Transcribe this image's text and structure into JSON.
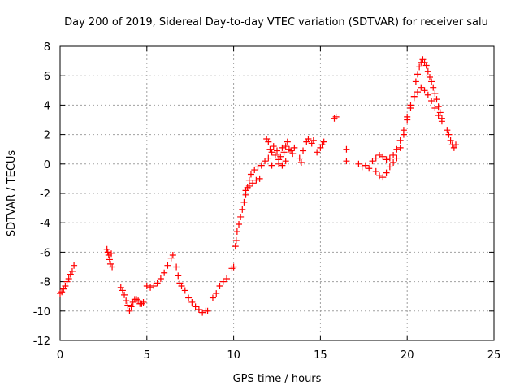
{
  "chart_data": {
    "type": "scatter",
    "title": "Day 200 of 2019, Sidereal Day-to-day VTEC variation (SDTVAR) for receiver salu",
    "xlabel": "GPS time / hours",
    "ylabel": "SDTVAR / TECUs",
    "xlim": [
      0,
      25
    ],
    "ylim": [
      -12,
      8
    ],
    "xticks": [
      "0",
      "5",
      "10",
      "15",
      "20",
      "25"
    ],
    "yticks": [
      "-12",
      "-10",
      "-8",
      "-6",
      "-4",
      "-2",
      "0",
      "2",
      "4",
      "6",
      "8"
    ],
    "grid": true,
    "marker": "+",
    "color": "#ff0000",
    "series": [
      {
        "name": "SDTVAR",
        "points": [
          [
            0.0,
            -8.8
          ],
          [
            0.1,
            -8.7
          ],
          [
            0.2,
            -8.5
          ],
          [
            0.3,
            -8.3
          ],
          [
            0.4,
            -8.0
          ],
          [
            0.5,
            -7.8
          ],
          [
            0.6,
            -7.5
          ],
          [
            0.7,
            -7.3
          ],
          [
            0.8,
            -6.9
          ],
          [
            2.7,
            -5.8
          ],
          [
            2.75,
            -6.0
          ],
          [
            2.8,
            -6.2
          ],
          [
            2.85,
            -6.5
          ],
          [
            2.9,
            -6.8
          ],
          [
            2.95,
            -6.1
          ],
          [
            3.0,
            -7.0
          ],
          [
            3.5,
            -8.4
          ],
          [
            3.6,
            -8.6
          ],
          [
            3.7,
            -8.9
          ],
          [
            3.8,
            -9.3
          ],
          [
            3.9,
            -9.6
          ],
          [
            4.0,
            -10.0
          ],
          [
            4.1,
            -9.7
          ],
          [
            4.2,
            -9.4
          ],
          [
            4.3,
            -9.2
          ],
          [
            4.4,
            -9.2
          ],
          [
            4.5,
            -9.3
          ],
          [
            4.6,
            -9.5
          ],
          [
            4.7,
            -9.5
          ],
          [
            4.8,
            -9.4
          ],
          [
            5.0,
            -8.3
          ],
          [
            5.2,
            -8.4
          ],
          [
            5.4,
            -8.3
          ],
          [
            5.6,
            -8.1
          ],
          [
            5.8,
            -7.8
          ],
          [
            6.0,
            -7.4
          ],
          [
            6.2,
            -6.9
          ],
          [
            6.4,
            -6.4
          ],
          [
            6.5,
            -6.2
          ],
          [
            6.7,
            -7.0
          ],
          [
            6.8,
            -7.6
          ],
          [
            6.9,
            -8.1
          ],
          [
            7.0,
            -8.3
          ],
          [
            7.2,
            -8.6
          ],
          [
            7.4,
            -9.1
          ],
          [
            7.6,
            -9.4
          ],
          [
            7.8,
            -9.7
          ],
          [
            8.0,
            -9.9
          ],
          [
            8.2,
            -10.1
          ],
          [
            8.4,
            -10.0
          ],
          [
            8.5,
            -10.0
          ],
          [
            8.8,
            -9.1
          ],
          [
            9.0,
            -8.8
          ],
          [
            9.2,
            -8.3
          ],
          [
            9.4,
            -8.0
          ],
          [
            9.6,
            -7.8
          ],
          [
            9.9,
            -7.1
          ],
          [
            10.0,
            -7.0
          ],
          [
            10.1,
            -5.6
          ],
          [
            10.15,
            -5.2
          ],
          [
            10.2,
            -4.6
          ],
          [
            10.3,
            -4.1
          ],
          [
            10.4,
            -3.6
          ],
          [
            10.5,
            -3.1
          ],
          [
            10.6,
            -2.6
          ],
          [
            10.7,
            -2.1
          ],
          [
            10.8,
            -1.6
          ],
          [
            10.9,
            -1.1
          ],
          [
            11.0,
            -0.7
          ],
          [
            11.2,
            -0.4
          ],
          [
            11.4,
            -0.2
          ],
          [
            10.7,
            -1.8
          ],
          [
            10.9,
            -1.5
          ],
          [
            11.1,
            -1.3
          ],
          [
            11.3,
            -1.1
          ],
          [
            11.5,
            -1.0
          ],
          [
            11.6,
            -0.1
          ],
          [
            11.8,
            0.2
          ],
          [
            12.0,
            0.4
          ],
          [
            12.1,
            1.0
          ],
          [
            12.2,
            0.8
          ],
          [
            12.3,
            1.2
          ],
          [
            12.4,
            0.6
          ],
          [
            12.5,
            0.9
          ],
          [
            12.6,
            0.3
          ],
          [
            12.7,
            0.5
          ],
          [
            12.8,
            1.1
          ],
          [
            12.9,
            0.8
          ],
          [
            13.0,
            1.2
          ],
          [
            13.1,
            1.5
          ],
          [
            13.2,
            1.0
          ],
          [
            13.3,
            0.9
          ],
          [
            13.4,
            0.7
          ],
          [
            13.5,
            1.1
          ],
          [
            11.9,
            1.7
          ],
          [
            12.0,
            1.5
          ],
          [
            12.2,
            -0.1
          ],
          [
            12.6,
            0.0
          ],
          [
            12.8,
            -0.1
          ],
          [
            13.0,
            0.2
          ],
          [
            13.8,
            0.4
          ],
          [
            13.9,
            0.1
          ],
          [
            14.0,
            0.9
          ],
          [
            14.2,
            1.5
          ],
          [
            14.3,
            1.7
          ],
          [
            14.5,
            1.4
          ],
          [
            14.6,
            1.6
          ],
          [
            14.8,
            0.8
          ],
          [
            15.0,
            1.1
          ],
          [
            15.1,
            1.3
          ],
          [
            15.2,
            1.5
          ],
          [
            15.8,
            3.1
          ],
          [
            15.9,
            3.2
          ],
          [
            16.5,
            1.0
          ],
          [
            16.5,
            0.2
          ],
          [
            17.2,
            0.0
          ],
          [
            17.4,
            -0.2
          ],
          [
            17.6,
            -0.1
          ],
          [
            17.8,
            -0.3
          ],
          [
            18.0,
            0.2
          ],
          [
            18.2,
            0.4
          ],
          [
            18.4,
            0.6
          ],
          [
            18.6,
            0.5
          ],
          [
            18.8,
            0.3
          ],
          [
            19.0,
            0.4
          ],
          [
            19.2,
            0.6
          ],
          [
            19.4,
            1.0
          ],
          [
            19.6,
            1.6
          ],
          [
            19.8,
            2.3
          ],
          [
            20.0,
            3.2
          ],
          [
            20.2,
            4.0
          ],
          [
            20.4,
            4.5
          ],
          [
            20.6,
            4.9
          ],
          [
            20.8,
            5.2
          ],
          [
            21.0,
            5.0
          ],
          [
            21.2,
            4.7
          ],
          [
            21.4,
            4.3
          ],
          [
            21.6,
            3.8
          ],
          [
            21.8,
            3.3
          ],
          [
            22.0,
            2.9
          ],
          [
            18.2,
            -0.5
          ],
          [
            18.4,
            -0.8
          ],
          [
            18.6,
            -0.9
          ],
          [
            18.8,
            -0.6
          ],
          [
            19.0,
            -0.2
          ],
          [
            19.2,
            0.1
          ],
          [
            19.4,
            0.4
          ],
          [
            19.6,
            1.1
          ],
          [
            19.8,
            2.0
          ],
          [
            20.0,
            3.0
          ],
          [
            20.2,
            3.8
          ],
          [
            20.4,
            4.6
          ],
          [
            20.5,
            5.6
          ],
          [
            20.6,
            6.1
          ],
          [
            20.7,
            6.6
          ],
          [
            20.8,
            6.9
          ],
          [
            20.9,
            7.1
          ],
          [
            21.0,
            6.9
          ],
          [
            21.1,
            6.7
          ],
          [
            21.2,
            6.3
          ],
          [
            21.3,
            5.9
          ],
          [
            21.4,
            5.6
          ],
          [
            21.5,
            5.2
          ],
          [
            21.6,
            4.8
          ],
          [
            21.7,
            4.4
          ],
          [
            21.8,
            3.9
          ],
          [
            21.9,
            3.5
          ],
          [
            22.0,
            3.1
          ],
          [
            22.3,
            2.3
          ],
          [
            22.4,
            2.0
          ],
          [
            22.5,
            1.6
          ],
          [
            22.6,
            1.3
          ],
          [
            22.7,
            1.1
          ],
          [
            22.8,
            1.3
          ]
        ]
      }
    ]
  }
}
